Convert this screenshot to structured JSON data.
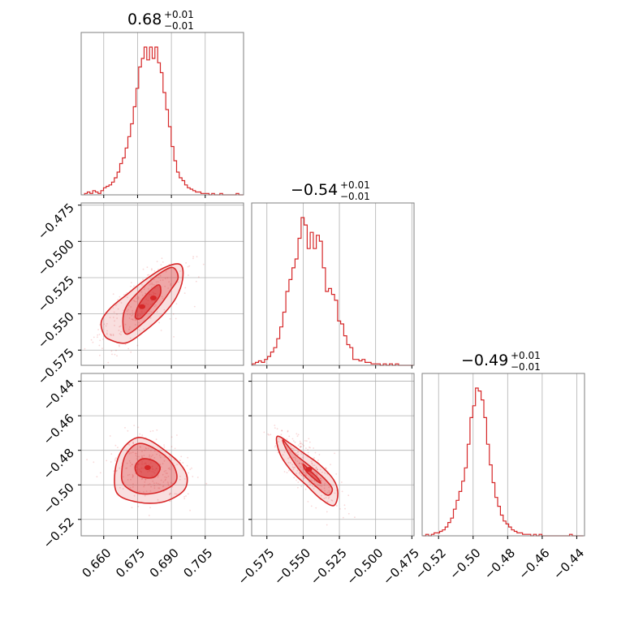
{
  "colors": {
    "accent": "#d62728",
    "grid": "#b0b0b0",
    "frame": "#7f7f7f"
  },
  "chart_data": {
    "type": "corner",
    "parameters": [
      {
        "title": {
          "value": "0.68",
          "plus": "+0.01",
          "minus": "−0.01"
        },
        "range": [
          0.65,
          0.722
        ],
        "ticks": [
          0.66,
          0.675,
          0.69,
          0.705
        ],
        "tick_labels": [
          "0.660",
          "0.675",
          "0.690",
          "0.705"
        ],
        "hist": {
          "bins": [
            0.6515,
            0.6527,
            0.6539,
            0.6551,
            0.6563,
            0.6575,
            0.6587,
            0.6599,
            0.6611,
            0.6623,
            0.6635,
            0.6647,
            0.6659,
            0.6671,
            0.6683,
            0.6695,
            0.6707,
            0.6719,
            0.6731,
            0.6743,
            0.6755,
            0.6767,
            0.6779,
            0.6791,
            0.6803,
            0.6815,
            0.6827,
            0.6839,
            0.6851,
            0.6863,
            0.6875,
            0.6887,
            0.6899,
            0.6911,
            0.6923,
            0.6935,
            0.6947,
            0.6959,
            0.6971,
            0.6983,
            0.6995,
            0.7007,
            0.7019,
            0.7031,
            0.7043,
            0.7055,
            0.7067,
            0.7079,
            0.7091,
            0.7103,
            0.7115,
            0.7127,
            0.7139,
            0.7151,
            0.7163,
            0.7175,
            0.7187,
            0.7199,
            0.7211,
            0.7219
          ],
          "heights": [
            1,
            2,
            1,
            3,
            2,
            1,
            3,
            5,
            6,
            7,
            9,
            12,
            16,
            22,
            26,
            33,
            41,
            50,
            62,
            75,
            90,
            96,
            104,
            95,
            104,
            96,
            104,
            93,
            86,
            72,
            60,
            48,
            34,
            24,
            16,
            12,
            10,
            7,
            5,
            4,
            3,
            2,
            2,
            1,
            1,
            1,
            0,
            1,
            0,
            0,
            1,
            0,
            0,
            0,
            0,
            0,
            1,
            0,
            0,
            0
          ]
        }
      },
      {
        "title": {
          "value": "−0.54",
          "plus": "+0.01",
          "minus": "−0.01"
        },
        "range": [
          -0.5855,
          -0.4735
        ],
        "ticks": [
          -0.575,
          -0.55,
          -0.525,
          -0.5,
          -0.475
        ],
        "tick_labels": [
          "−0.575",
          "−0.550",
          "−0.525",
          "−0.500",
          "−0.475"
        ],
        "hist": {
          "bins": [
            -0.585,
            -0.5829,
            -0.5808,
            -0.5787,
            -0.5766,
            -0.5745,
            -0.5724,
            -0.5703,
            -0.5682,
            -0.5661,
            -0.564,
            -0.5619,
            -0.5598,
            -0.5577,
            -0.5556,
            -0.5535,
            -0.5514,
            -0.5493,
            -0.5472,
            -0.5451,
            -0.543,
            -0.5409,
            -0.5388,
            -0.5367,
            -0.5346,
            -0.5325,
            -0.5304,
            -0.5283,
            -0.5262,
            -0.5241,
            -0.522,
            -0.5199,
            -0.5178,
            -0.5157,
            -0.5136,
            -0.5115,
            -0.5094,
            -0.5073,
            -0.5052,
            -0.5031,
            -0.501,
            -0.4989,
            -0.4968,
            -0.4947,
            -0.4926,
            -0.4905,
            -0.4884,
            -0.4863,
            -0.4842,
            -0.4821,
            -0.48,
            -0.4779,
            -0.4758,
            -0.474
          ],
          "heights": [
            1,
            2,
            3,
            2,
            4,
            6,
            9,
            12,
            18,
            26,
            36,
            50,
            58,
            66,
            72,
            86,
            100,
            95,
            79,
            90,
            79,
            88,
            84,
            66,
            50,
            52,
            48,
            44,
            30,
            28,
            20,
            14,
            12,
            4,
            4,
            3,
            4,
            2,
            2,
            1,
            1,
            1,
            0,
            1,
            0,
            1,
            0,
            1,
            0,
            0,
            0,
            0,
            0,
            0
          ]
        }
      },
      {
        "title": {
          "value": "−0.49",
          "plus": "+0.01",
          "minus": "−0.01"
        },
        "range": [
          -0.5295,
          -0.4355
        ],
        "ticks": [
          -0.52,
          -0.5,
          -0.48,
          -0.46,
          -0.44
        ],
        "tick_labels": [
          "−0.52",
          "−0.50",
          "−0.48",
          "−0.46",
          "−0.44"
        ],
        "hist": {
          "bins": [
            -0.529,
            -0.5274,
            -0.5258,
            -0.5242,
            -0.5226,
            -0.521,
            -0.5194,
            -0.5178,
            -0.5162,
            -0.5146,
            -0.513,
            -0.5114,
            -0.5098,
            -0.5082,
            -0.5066,
            -0.505,
            -0.5034,
            -0.5018,
            -0.5002,
            -0.4986,
            -0.497,
            -0.4954,
            -0.4938,
            -0.4922,
            -0.4906,
            -0.489,
            -0.4874,
            -0.4858,
            -0.4842,
            -0.4826,
            -0.481,
            -0.4794,
            -0.4778,
            -0.4762,
            -0.4746,
            -0.473,
            -0.4714,
            -0.4698,
            -0.4682,
            -0.4666,
            -0.465,
            -0.4634,
            -0.4618,
            -0.4602,
            -0.4586,
            -0.457,
            -0.4554,
            -0.4538,
            -0.4522,
            -0.4506,
            -0.449,
            -0.4474,
            -0.4458,
            -0.4442,
            -0.4426,
            -0.441,
            -0.4394,
            -0.4378,
            -0.4362
          ],
          "heights": [
            0,
            1,
            0,
            1,
            2,
            2,
            3,
            4,
            6,
            9,
            12,
            18,
            24,
            30,
            37,
            46,
            62,
            80,
            88,
            100,
            98,
            92,
            80,
            62,
            48,
            36,
            26,
            20,
            14,
            10,
            8,
            6,
            4,
            3,
            2,
            2,
            1,
            1,
            1,
            0,
            1,
            0,
            1,
            0,
            0,
            0,
            0,
            0,
            0,
            0,
            0,
            0,
            0,
            1,
            0,
            0,
            0,
            0,
            0
          ]
        }
      }
    ],
    "pairs": [
      {
        "x_param": 0,
        "y_param": 1,
        "contour_levels": [
          {
            "level": 0.39,
            "x": [
              0.6765,
              0.6812,
              0.685,
              0.6845,
              0.68,
              0.6755,
              0.674
            ],
            "y": [
              -0.553,
              -0.545,
              -0.537,
              -0.53,
              -0.535,
              -0.544,
              -0.552
            ]
          },
          {
            "level": 0.86,
            "x": [
              0.6705,
              0.679,
              0.685,
              0.69,
              0.693,
              0.6905,
              0.684,
              0.676,
              0.67,
              0.6685
            ],
            "y": [
              -0.564,
              -0.554,
              -0.544,
              -0.533,
              -0.525,
              -0.518,
              -0.523,
              -0.534,
              -0.545,
              -0.556
            ]
          },
          {
            "level": 0.99,
            "x": [
              0.663,
              0.67,
              0.678,
              0.686,
              0.692,
              0.695,
              0.694,
              0.687,
              0.678,
              0.67,
              0.663,
              0.659,
              0.66
            ],
            "y": [
              -0.568,
              -0.57,
              -0.562,
              -0.551,
              -0.539,
              -0.526,
              -0.516,
              -0.518,
              -0.527,
              -0.537,
              -0.546,
              -0.555,
              -0.564
            ]
          }
        ],
        "density_peaks": [
          {
            "x": 0.677,
            "y": -0.545
          },
          {
            "x": 0.682,
            "y": -0.539
          }
        ]
      },
      {
        "x_param": 0,
        "y_param": 2,
        "contour_levels": [
          {
            "level": 0.39,
            "x": [
              0.675,
              0.679,
              0.683,
              0.685,
              0.682,
              0.677,
              0.674
            ],
            "y": [
              -0.494,
              -0.496,
              -0.495,
              -0.49,
              -0.486,
              -0.485,
              -0.489
            ]
          },
          {
            "level": 0.86,
            "x": [
              0.669,
              0.676,
              0.685,
              0.692,
              0.691,
              0.685,
              0.676,
              0.67,
              0.668
            ],
            "y": [
              -0.5,
              -0.505,
              -0.504,
              -0.498,
              -0.489,
              -0.481,
              -0.476,
              -0.482,
              -0.492
            ]
          },
          {
            "level": 0.99,
            "x": [
              0.666,
              0.675,
              0.686,
              0.695,
              0.697,
              0.694,
              0.687,
              0.68,
              0.674,
              0.668,
              0.665
            ],
            "y": [
              -0.505,
              -0.51,
              -0.51,
              -0.504,
              -0.496,
              -0.488,
              -0.48,
              -0.474,
              -0.473,
              -0.48,
              -0.492
            ]
          }
        ],
        "density_peaks": [
          {
            "x": 0.6795,
            "y": -0.49
          }
        ]
      },
      {
        "x_param": 1,
        "y_param": 2,
        "contour_levels": [
          {
            "level": 0.39,
            "x": [
              -0.55,
              -0.545,
              -0.54,
              -0.538,
              -0.543,
              -0.548
            ],
            "y": [
              -0.488,
              -0.492,
              -0.496,
              -0.499,
              -0.496,
              -0.492
            ]
          },
          {
            "level": 0.86,
            "x": [
              -0.564,
              -0.556,
              -0.547,
              -0.537,
              -0.53,
              -0.533,
              -0.541,
              -0.551,
              -0.56
            ],
            "y": [
              -0.474,
              -0.482,
              -0.488,
              -0.495,
              -0.502,
              -0.506,
              -0.501,
              -0.493,
              -0.482
            ]
          },
          {
            "level": 0.99,
            "x": [
              -0.568,
              -0.559,
              -0.549,
              -0.539,
              -0.529,
              -0.526,
              -0.529,
              -0.538,
              -0.548,
              -0.558,
              -0.566
            ],
            "y": [
              -0.472,
              -0.476,
              -0.482,
              -0.488,
              -0.497,
              -0.505,
              -0.512,
              -0.508,
              -0.5,
              -0.492,
              -0.482
            ]
          }
        ],
        "density_peaks": [
          {
            "x": -0.546,
            "y": -0.491
          }
        ]
      }
    ],
    "grid": true,
    "legend": "none"
  }
}
